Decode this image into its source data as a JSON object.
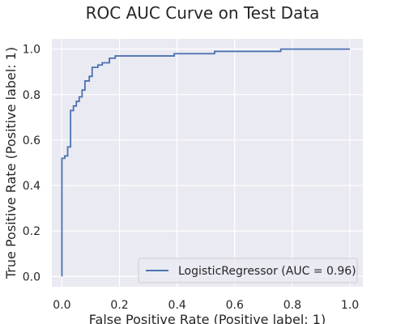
{
  "chart_data": {
    "type": "line",
    "title": "ROC AUC Curve on Test Data",
    "xlabel": "False Positive Rate (Positive label: 1)",
    "ylabel": "True Positive Rate (Positive label: 1)",
    "xlim": [
      -0.035,
      1.045
    ],
    "ylim": [
      -0.045,
      1.045
    ],
    "xticks": [
      0.0,
      0.2,
      0.4,
      0.6,
      0.8,
      1.0
    ],
    "yticks": [
      0.0,
      0.2,
      0.4,
      0.6,
      0.8,
      1.0
    ],
    "xtick_labels": [
      "0.0",
      "0.2",
      "0.4",
      "0.6",
      "0.8",
      "1.0"
    ],
    "ytick_labels": [
      "0.0",
      "0.2",
      "0.4",
      "0.6",
      "0.8",
      "1.0"
    ],
    "grid": true,
    "legend_position": "lower-right",
    "colors": {
      "background": "#eaeaf2",
      "grid": "#ffffff",
      "line": "#4c72b0"
    },
    "series": [
      {
        "name": "LogisticRegressor (AUC = 0.96)",
        "drawstyle": "steps-post",
        "x": [
          0.0,
          0.0,
          0.01,
          0.01,
          0.02,
          0.02,
          0.03,
          0.03,
          0.04,
          0.04,
          0.05,
          0.05,
          0.06,
          0.06,
          0.07,
          0.07,
          0.08,
          0.08,
          0.095,
          0.095,
          0.105,
          0.105,
          0.125,
          0.125,
          0.14,
          0.14,
          0.165,
          0.165,
          0.185,
          0.185,
          0.39,
          0.39,
          0.53,
          0.53,
          0.76,
          0.76,
          1.0
        ],
        "y": [
          0.0,
          0.52,
          0.52,
          0.53,
          0.53,
          0.57,
          0.57,
          0.73,
          0.73,
          0.75,
          0.75,
          0.77,
          0.77,
          0.79,
          0.79,
          0.82,
          0.82,
          0.86,
          0.86,
          0.88,
          0.88,
          0.92,
          0.92,
          0.93,
          0.93,
          0.94,
          0.94,
          0.96,
          0.96,
          0.97,
          0.97,
          0.98,
          0.98,
          0.99,
          0.99,
          1.0,
          1.0
        ]
      }
    ]
  }
}
